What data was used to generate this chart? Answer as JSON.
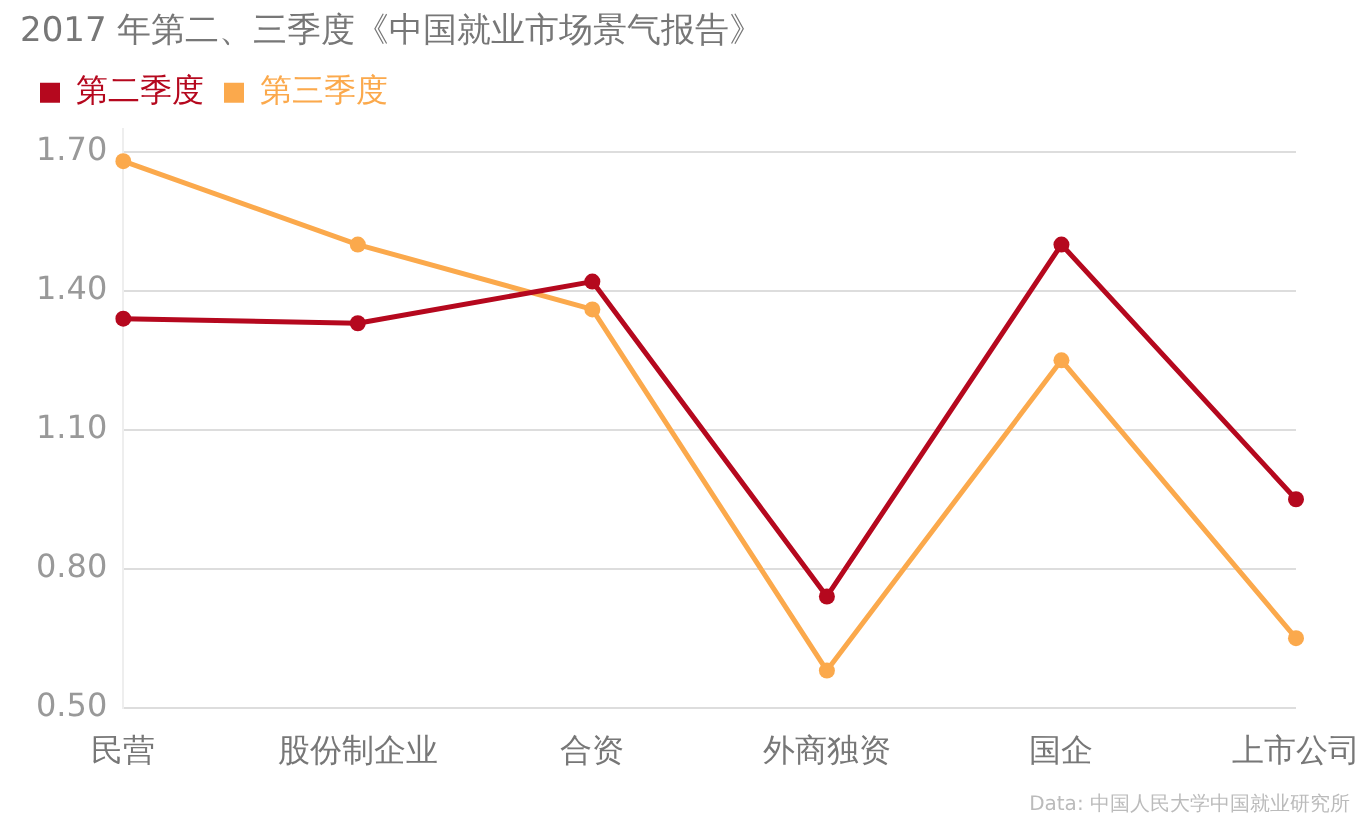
{
  "chart_data": {
    "type": "line",
    "title": "2017 年第二、三季度《中国就业市场景气报告》",
    "categories": [
      "民营",
      "股份制企业",
      "合资",
      "外商独资",
      "国企",
      "上市公司"
    ],
    "series": [
      {
        "name": "第二季度",
        "color": "#b5081e",
        "values": [
          1.34,
          1.33,
          1.42,
          0.74,
          1.5,
          0.95
        ]
      },
      {
        "name": "第三季度",
        "color": "#fba94c",
        "values": [
          1.68,
          1.5,
          1.36,
          0.58,
          1.25,
          0.65
        ]
      }
    ],
    "ylim": [
      0.5,
      1.75
    ],
    "yticks": [
      {
        "value": 0.5,
        "label": "0.50"
      },
      {
        "value": 0.8,
        "label": "0.80"
      },
      {
        "value": 1.1,
        "label": "1.10"
      },
      {
        "value": 1.4,
        "label": "1.40"
      },
      {
        "value": 1.7,
        "label": "1.70"
      }
    ],
    "grid": "y",
    "legend": "top left",
    "marker": "circle",
    "line_style": "solid",
    "annotations": [
      "Data: 中国人民大学中国就业研究所"
    ]
  }
}
